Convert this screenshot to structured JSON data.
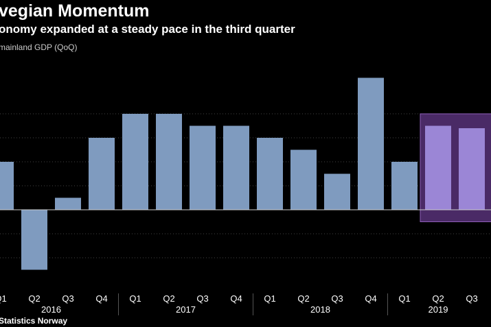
{
  "header": {
    "title": "vegian Momentum",
    "subtitle": "onomy expanded at a steady pace in the third quarter",
    "series_label": "mainland GDP (QoQ)"
  },
  "footer": {
    "source": "Statistics Norway"
  },
  "colors": {
    "bar": "#7f9bbf",
    "highlight_bar": "#9b86d6",
    "highlight_fill": "#4a2a66",
    "highlight_stroke": "#8e5fb8",
    "grid": "#444444",
    "zero_line": "#cfcfcf",
    "background": "#000000"
  },
  "chart_data": {
    "type": "bar",
    "categories": [
      "Q1",
      "Q2",
      "Q3",
      "Q4",
      "Q1",
      "Q2",
      "Q3",
      "Q4",
      "Q1",
      "Q2",
      "Q3",
      "Q4",
      "Q1",
      "Q2",
      "Q3"
    ],
    "years": [
      {
        "label": "2016",
        "first": 0,
        "last": 3
      },
      {
        "label": "2017",
        "first": 4,
        "last": 7
      },
      {
        "label": "2018",
        "first": 8,
        "last": 11
      },
      {
        "label": "2019",
        "first": 12,
        "last": 14
      }
    ],
    "values": [
      0.4,
      -0.5,
      0.1,
      0.6,
      0.8,
      0.8,
      0.7,
      0.7,
      0.6,
      0.5,
      0.3,
      1.1,
      0.4,
      0.7,
      0.68
    ],
    "highlight": {
      "from": 13,
      "to": 14
    },
    "ylim": [
      -0.6,
      1.1
    ],
    "gridlines": [
      -0.4,
      -0.2,
      0.2,
      0.4,
      0.6,
      0.8
    ],
    "grid": true
  }
}
